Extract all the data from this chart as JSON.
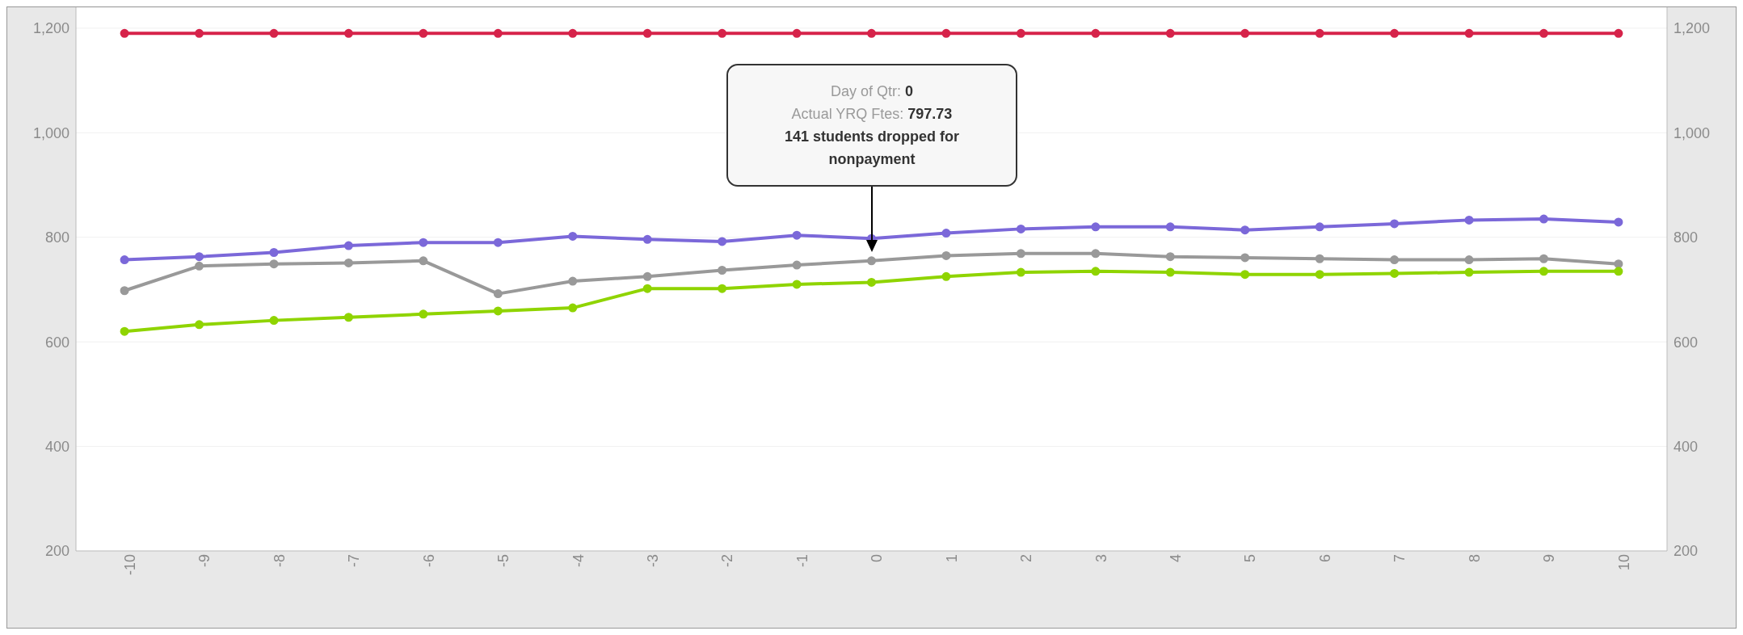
{
  "chart_data": {
    "type": "line",
    "x": [
      -10,
      -9,
      -8,
      -7,
      -6,
      -5,
      -4,
      -3,
      -2,
      -1,
      0,
      1,
      2,
      3,
      4,
      5,
      6,
      7,
      8,
      9,
      10
    ],
    "series": [
      {
        "color": "#d6234a",
        "values": [
          1190,
          1190,
          1190,
          1190,
          1190,
          1190,
          1190,
          1190,
          1190,
          1190,
          1190,
          1190,
          1190,
          1190,
          1190,
          1190,
          1190,
          1190,
          1190,
          1190,
          1190
        ]
      },
      {
        "color": "#7b68d9",
        "values": [
          757,
          763,
          771,
          784,
          790,
          790,
          802,
          796,
          792,
          804,
          797.73,
          808,
          816,
          820,
          820,
          814,
          820,
          826,
          833,
          835,
          829
        ]
      },
      {
        "color": "#999999",
        "values": [
          698,
          745,
          749,
          751,
          755,
          692,
          716,
          725,
          737,
          747,
          755,
          765,
          769,
          769,
          763,
          761,
          759,
          757,
          757,
          759,
          749
        ]
      },
      {
        "color": "#8fd400",
        "values": [
          620,
          633,
          641,
          647,
          653,
          659,
          665,
          702,
          702,
          710,
          714,
          725,
          733,
          735,
          733,
          729,
          729,
          731,
          733,
          735,
          735
        ]
      }
    ],
    "xlim": [
      -10.65,
      10.65
    ],
    "xticks": [
      -10,
      -9,
      -8,
      -7,
      -6,
      -5,
      -4,
      -3,
      -2,
      -1,
      0,
      1,
      2,
      3,
      4,
      5,
      6,
      7,
      8,
      9,
      10
    ],
    "ylim": [
      200,
      1240
    ],
    "yticks": [
      200,
      400,
      600,
      800,
      {
        "value": 1000,
        "label": "1,000"
      },
      {
        "value": 1200,
        "label": "1,200"
      }
    ],
    "y2lim": [
      200,
      1240
    ],
    "y2ticks": [
      200,
      400,
      600,
      800,
      {
        "value": 1000,
        "label": "1,000"
      },
      {
        "value": 1200,
        "label": "1,200"
      }
    ],
    "annotations": [
      "Day of Qtr: 0\nActual YRQ Ftes: 797.73\n141 students dropped for nonpayment"
    ],
    "grid": "y",
    "marker": "circle",
    "line_style": "solid"
  }
}
